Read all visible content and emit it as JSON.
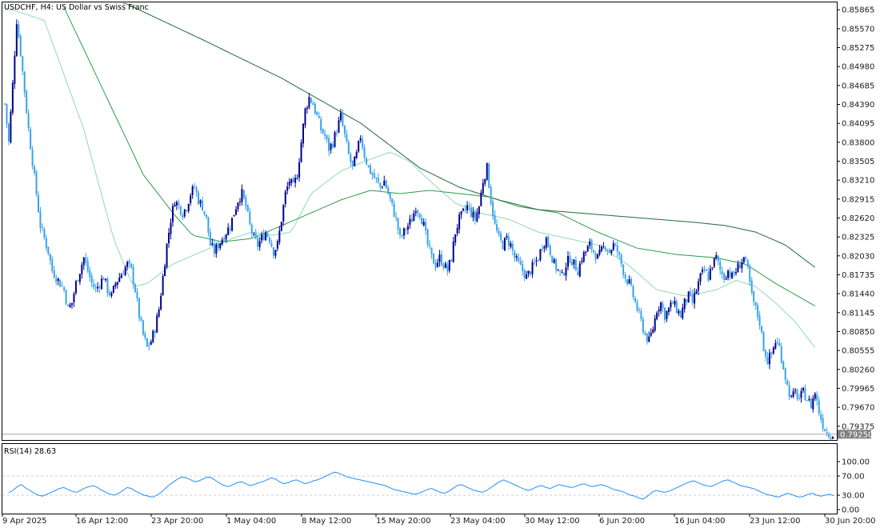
{
  "chart_data": {
    "type": "candlestick",
    "title": "USDCHF, H4:  US Dollar vs Swiss Franc",
    "symbol": "USDCHF",
    "timeframe": "H4",
    "description": "US Dollar vs Swiss Franc",
    "price_ticks": [
      "0.85865",
      "0.85570",
      "0.85275",
      "0.84980",
      "0.84685",
      "0.84390",
      "0.84095",
      "0.83800",
      "0.83505",
      "0.83210",
      "0.82915",
      "0.82620",
      "0.82325",
      "0.82030",
      "0.81735",
      "0.81440",
      "0.81145",
      "0.80850",
      "0.80555",
      "0.80260",
      "0.79965",
      "0.79670",
      "0.79375"
    ],
    "ylim": [
      0.7916,
      0.8598
    ],
    "current_price": "0.79250",
    "x_ticks": [
      "9 Apr 2025",
      "16 Apr 12:00",
      "23 Apr 20:00",
      "1 May 04:00",
      "8 May 12:00",
      "15 May 20:00",
      "23 May 04:00",
      "30 May 12:00",
      "6 Jun 20:00",
      "16 Jun 04:00",
      "23 Jun 12:00",
      "30 Jun 20:00"
    ],
    "bull_color": "#00008b",
    "bear_color": "#36a3e9",
    "price_path": [
      [
        0,
        0.844
      ],
      [
        2,
        0.838
      ],
      [
        4,
        0.847
      ],
      [
        6,
        0.857
      ],
      [
        8,
        0.852
      ],
      [
        10,
        0.846
      ],
      [
        12,
        0.84
      ],
      [
        14,
        0.835
      ],
      [
        16,
        0.83
      ],
      [
        18,
        0.825
      ],
      [
        20,
        0.823
      ],
      [
        22,
        0.821
      ],
      [
        24,
        0.818
      ],
      [
        26,
        0.817
      ],
      [
        28,
        0.816
      ],
      [
        30,
        0.815
      ],
      [
        32,
        0.812
      ],
      [
        34,
        0.813
      ],
      [
        36,
        0.816
      ],
      [
        38,
        0.818
      ],
      [
        40,
        0.82
      ],
      [
        42,
        0.818
      ],
      [
        44,
        0.816
      ],
      [
        46,
        0.815
      ],
      [
        48,
        0.816
      ],
      [
        50,
        0.817
      ],
      [
        52,
        0.815
      ],
      [
        54,
        0.814
      ],
      [
        56,
        0.816
      ],
      [
        58,
        0.817
      ],
      [
        60,
        0.818
      ],
      [
        62,
        0.819
      ],
      [
        64,
        0.818
      ],
      [
        66,
        0.815
      ],
      [
        68,
        0.811
      ],
      [
        70,
        0.808
      ],
      [
        72,
        0.806
      ],
      [
        74,
        0.807
      ],
      [
        76,
        0.809
      ],
      [
        78,
        0.812
      ],
      [
        80,
        0.817
      ],
      [
        82,
        0.822
      ],
      [
        84,
        0.826
      ],
      [
        86,
        0.829
      ],
      [
        88,
        0.828
      ],
      [
        90,
        0.827
      ],
      [
        92,
        0.828
      ],
      [
        94,
        0.83
      ],
      [
        96,
        0.831
      ],
      [
        98,
        0.829
      ],
      [
        100,
        0.828
      ],
      [
        102,
        0.826
      ],
      [
        104,
        0.822
      ],
      [
        106,
        0.821
      ],
      [
        108,
        0.822
      ],
      [
        110,
        0.823
      ],
      [
        112,
        0.824
      ],
      [
        114,
        0.825
      ],
      [
        116,
        0.827
      ],
      [
        118,
        0.829
      ],
      [
        120,
        0.83
      ],
      [
        122,
        0.828
      ],
      [
        124,
        0.825
      ],
      [
        126,
        0.823
      ],
      [
        128,
        0.822
      ],
      [
        130,
        0.823
      ],
      [
        132,
        0.824
      ],
      [
        134,
        0.823
      ],
      [
        136,
        0.821
      ],
      [
        138,
        0.822
      ],
      [
        140,
        0.826
      ],
      [
        142,
        0.83
      ],
      [
        144,
        0.832
      ],
      [
        146,
        0.831
      ],
      [
        148,
        0.833
      ],
      [
        150,
        0.838
      ],
      [
        152,
        0.843
      ],
      [
        154,
        0.845
      ],
      [
        156,
        0.844
      ],
      [
        158,
        0.842
      ],
      [
        160,
        0.84
      ],
      [
        162,
        0.839
      ],
      [
        164,
        0.837
      ],
      [
        166,
        0.838
      ],
      [
        168,
        0.84
      ],
      [
        170,
        0.842
      ],
      [
        172,
        0.839
      ],
      [
        174,
        0.836
      ],
      [
        176,
        0.834
      ],
      [
        178,
        0.836
      ],
      [
        180,
        0.839
      ],
      [
        182,
        0.836
      ],
      [
        184,
        0.834
      ],
      [
        186,
        0.833
      ],
      [
        188,
        0.832
      ],
      [
        190,
        0.831
      ],
      [
        192,
        0.832
      ],
      [
        194,
        0.83
      ],
      [
        196,
        0.828
      ],
      [
        198,
        0.826
      ],
      [
        200,
        0.823
      ],
      [
        202,
        0.824
      ],
      [
        204,
        0.825
      ],
      [
        206,
        0.826
      ],
      [
        208,
        0.828
      ],
      [
        210,
        0.827
      ],
      [
        212,
        0.825
      ],
      [
        214,
        0.822
      ],
      [
        216,
        0.82
      ],
      [
        218,
        0.819
      ],
      [
        220,
        0.82
      ],
      [
        222,
        0.819
      ],
      [
        224,
        0.818
      ],
      [
        226,
        0.82
      ],
      [
        228,
        0.824
      ],
      [
        230,
        0.826
      ],
      [
        232,
        0.827
      ],
      [
        234,
        0.828
      ],
      [
        236,
        0.827
      ],
      [
        238,
        0.826
      ],
      [
        240,
        0.828
      ],
      [
        242,
        0.832
      ],
      [
        244,
        0.834
      ],
      [
        246,
        0.829
      ],
      [
        248,
        0.825
      ],
      [
        250,
        0.823
      ],
      [
        252,
        0.822
      ],
      [
        254,
        0.823
      ],
      [
        256,
        0.822
      ],
      [
        258,
        0.82
      ],
      [
        260,
        0.819
      ],
      [
        262,
        0.818
      ],
      [
        264,
        0.817
      ],
      [
        266,
        0.818
      ],
      [
        268,
        0.819
      ],
      [
        270,
        0.82
      ],
      [
        272,
        0.822
      ],
      [
        274,
        0.823
      ],
      [
        276,
        0.821
      ],
      [
        278,
        0.819
      ],
      [
        280,
        0.818
      ],
      [
        282,
        0.817
      ],
      [
        284,
        0.819
      ],
      [
        286,
        0.82
      ],
      [
        288,
        0.819
      ],
      [
        290,
        0.818
      ],
      [
        292,
        0.82
      ],
      [
        294,
        0.821
      ],
      [
        296,
        0.822
      ],
      [
        298,
        0.821
      ],
      [
        300,
        0.82
      ],
      [
        302,
        0.821
      ],
      [
        304,
        0.822
      ],
      [
        306,
        0.821
      ],
      [
        308,
        0.822
      ],
      [
        310,
        0.821
      ],
      [
        312,
        0.819
      ],
      [
        314,
        0.817
      ],
      [
        316,
        0.816
      ],
      [
        318,
        0.814
      ],
      [
        320,
        0.812
      ],
      [
        322,
        0.81
      ],
      [
        324,
        0.808
      ],
      [
        326,
        0.807
      ],
      [
        328,
        0.809
      ],
      [
        330,
        0.812
      ],
      [
        332,
        0.813
      ],
      [
        334,
        0.811
      ],
      [
        336,
        0.812
      ],
      [
        338,
        0.813
      ],
      [
        340,
        0.812
      ],
      [
        342,
        0.811
      ],
      [
        344,
        0.813
      ],
      [
        346,
        0.814
      ],
      [
        348,
        0.813
      ],
      [
        350,
        0.815
      ],
      [
        352,
        0.817
      ],
      [
        354,
        0.818
      ],
      [
        356,
        0.817
      ],
      [
        358,
        0.819
      ],
      [
        360,
        0.82
      ],
      [
        362,
        0.818
      ],
      [
        364,
        0.817
      ],
      [
        366,
        0.818
      ],
      [
        368,
        0.817
      ],
      [
        370,
        0.818
      ],
      [
        372,
        0.819
      ],
      [
        374,
        0.82
      ],
      [
        376,
        0.818
      ],
      [
        378,
        0.814
      ],
      [
        380,
        0.812
      ],
      [
        382,
        0.81
      ],
      [
        384,
        0.806
      ],
      [
        386,
        0.804
      ],
      [
        388,
        0.805
      ],
      [
        390,
        0.807
      ],
      [
        392,
        0.806
      ],
      [
        394,
        0.803
      ],
      [
        396,
        0.8
      ],
      [
        398,
        0.798
      ],
      [
        400,
        0.799
      ],
      [
        402,
        0.798
      ],
      [
        404,
        0.799
      ],
      [
        406,
        0.798
      ],
      [
        408,
        0.797
      ],
      [
        410,
        0.799
      ],
      [
        412,
        0.796
      ],
      [
        414,
        0.794
      ],
      [
        416,
        0.7928
      ],
      [
        418,
        0.7925
      ]
    ],
    "ma_fast_color": "#8fd9b6",
    "ma_fast": [
      [
        0,
        0.859
      ],
      [
        20,
        0.857
      ],
      [
        40,
        0.84
      ],
      [
        55,
        0.823
      ],
      [
        65,
        0.8155
      ],
      [
        72,
        0.816
      ],
      [
        85,
        0.819
      ],
      [
        100,
        0.821
      ],
      [
        115,
        0.823
      ],
      [
        125,
        0.824
      ],
      [
        135,
        0.8235
      ],
      [
        145,
        0.824
      ],
      [
        155,
        0.83
      ],
      [
        170,
        0.8335
      ],
      [
        182,
        0.835
      ],
      [
        195,
        0.8365
      ],
      [
        205,
        0.835
      ],
      [
        215,
        0.832
      ],
      [
        228,
        0.8285
      ],
      [
        240,
        0.827
      ],
      [
        255,
        0.826
      ],
      [
        270,
        0.824
      ],
      [
        285,
        0.823
      ],
      [
        300,
        0.822
      ],
      [
        315,
        0.819
      ],
      [
        330,
        0.815
      ],
      [
        345,
        0.814
      ],
      [
        360,
        0.815
      ],
      [
        370,
        0.8165
      ],
      [
        380,
        0.8155
      ],
      [
        390,
        0.813
      ],
      [
        400,
        0.81
      ],
      [
        410,
        0.806
      ]
    ],
    "ma_mid_color": "#2e9b4e",
    "ma_mid": [
      [
        30,
        0.859
      ],
      [
        50,
        0.846
      ],
      [
        70,
        0.833
      ],
      [
        85,
        0.827
      ],
      [
        95,
        0.8235
      ],
      [
        110,
        0.8225
      ],
      [
        125,
        0.823
      ],
      [
        140,
        0.825
      ],
      [
        155,
        0.827
      ],
      [
        170,
        0.829
      ],
      [
        185,
        0.8305
      ],
      [
        200,
        0.83
      ],
      [
        215,
        0.8305
      ],
      [
        230,
        0.83
      ],
      [
        245,
        0.8295
      ],
      [
        260,
        0.828
      ],
      [
        280,
        0.827
      ],
      [
        300,
        0.824
      ],
      [
        320,
        0.8215
      ],
      [
        340,
        0.8205
      ],
      [
        360,
        0.82
      ],
      [
        375,
        0.819
      ],
      [
        390,
        0.816
      ],
      [
        410,
        0.8125
      ]
    ],
    "ma_slow_color": "#1e6b3a",
    "ma_slow": [
      [
        60,
        0.8598
      ],
      [
        100,
        0.854
      ],
      [
        140,
        0.848
      ],
      [
        180,
        0.841
      ],
      [
        210,
        0.834
      ],
      [
        230,
        0.831
      ],
      [
        250,
        0.829
      ],
      [
        270,
        0.8275
      ],
      [
        290,
        0.827
      ],
      [
        310,
        0.8265
      ],
      [
        330,
        0.826
      ],
      [
        350,
        0.8255
      ],
      [
        365,
        0.825
      ],
      [
        380,
        0.824
      ],
      [
        395,
        0.822
      ],
      [
        410,
        0.8185
      ]
    ],
    "rsi_label": "RSI(14) 28.63",
    "rsi_ticks": [
      "100.00",
      "70.00",
      "30.00",
      "0.00"
    ],
    "rsi_levels": [
      70,
      30
    ],
    "rsi_ylim": [
      0,
      100
    ],
    "rsi_color": "#1e90ff",
    "rsi": [
      35,
      40,
      48,
      52,
      45,
      40,
      34,
      30,
      28,
      32,
      36,
      40,
      44,
      46,
      42,
      38,
      36,
      40,
      45,
      48,
      50,
      46,
      40,
      36,
      32,
      30,
      34,
      40,
      46,
      44,
      38,
      34,
      30,
      28,
      26,
      30,
      36,
      44,
      52,
      58,
      64,
      68,
      66,
      62,
      58,
      60,
      64,
      68,
      66,
      60,
      54,
      50,
      48,
      52,
      56,
      58,
      54,
      50,
      52,
      56,
      58,
      62,
      66,
      64,
      58,
      54,
      56,
      60,
      62,
      58,
      54,
      56,
      60,
      62,
      66,
      70,
      74,
      78,
      76,
      72,
      68,
      66,
      64,
      62,
      60,
      58,
      56,
      54,
      52,
      50,
      46,
      42,
      40,
      38,
      36,
      34,
      32,
      34,
      38,
      42,
      44,
      40,
      36,
      34,
      38,
      44,
      50,
      52,
      48,
      44,
      40,
      38,
      36,
      40,
      46,
      52,
      58,
      62,
      58,
      54,
      50,
      46,
      42,
      40,
      44,
      48,
      50,
      46,
      44,
      48,
      52,
      50,
      48,
      46,
      48,
      52,
      54,
      50,
      48,
      50,
      52,
      50,
      46,
      42,
      40,
      38,
      34,
      30,
      28,
      24,
      22,
      28,
      36,
      40,
      38,
      36,
      38,
      42,
      46,
      50,
      54,
      58,
      60,
      56,
      52,
      50,
      48,
      52,
      56,
      60,
      62,
      58,
      54,
      50,
      48,
      46,
      44,
      40,
      36,
      32,
      30,
      28,
      26,
      30,
      34,
      32,
      28,
      26,
      28,
      32,
      34,
      30,
      28,
      30,
      32,
      29
    ]
  }
}
